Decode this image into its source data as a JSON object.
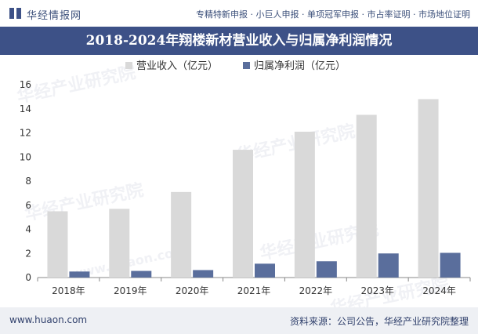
{
  "header": {
    "brand": "华经情报网",
    "tagline": "专精特新申报 · 小巨人申报 · 单项冠军申报 · 市占率证明 · 市场地位证明"
  },
  "watermark": {
    "cn": "华经产业研究院",
    "url": "www.huaon.com"
  },
  "footer": {
    "url": "www.huaon.com",
    "source": "资料来源：公司公告，华经产业研究院整理"
  },
  "chart_data": {
    "type": "bar",
    "title": "2018-2024年翔楼新材营业收入与归属净利润情况",
    "categories": [
      "2018年",
      "2019年",
      "2020年",
      "2021年",
      "2022年",
      "2023年",
      "2024年"
    ],
    "series": [
      {
        "name": "营业收入（亿元）",
        "color": "#d9d9d9",
        "values": [
          5.5,
          5.7,
          7.1,
          10.6,
          12.1,
          13.5,
          14.8
        ]
      },
      {
        "name": "归属净利润（亿元）",
        "color": "#5a6e9c",
        "values": [
          0.5,
          0.55,
          0.62,
          1.15,
          1.35,
          2.0,
          2.05
        ]
      }
    ],
    "ylim": [
      0,
      16
    ],
    "yticks": [
      0,
      2,
      4,
      6,
      8,
      10,
      12,
      14,
      16
    ],
    "xlabel": "",
    "ylabel": "",
    "grid": false,
    "legend": "top-center"
  }
}
